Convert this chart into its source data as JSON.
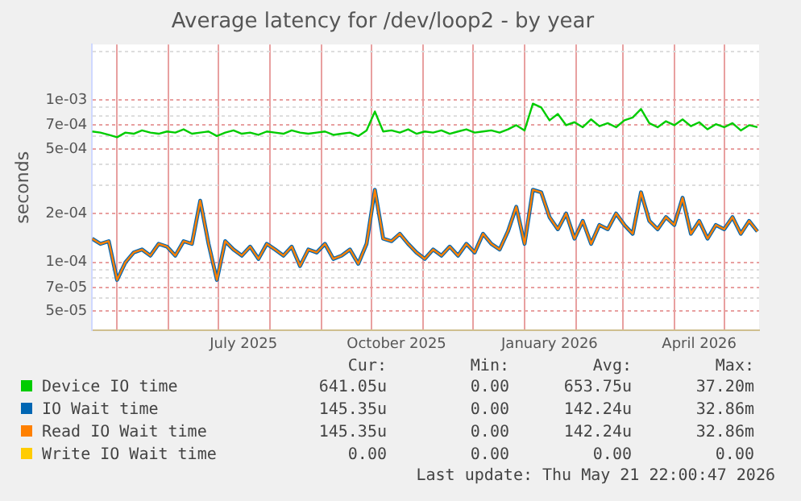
{
  "chart_data": {
    "type": "line",
    "title": "Average latency for /dev/loop2 - by year",
    "ylabel": "seconds",
    "x": [
      "2025-04-16",
      "2025-04-21",
      "2025-04-26",
      "2025-05-01",
      "2025-05-06",
      "2025-05-11",
      "2025-05-16",
      "2025-05-21",
      "2025-05-26",
      "2025-05-31",
      "2025-06-05",
      "2025-06-10",
      "2025-06-15",
      "2025-06-20",
      "2025-06-25",
      "2025-06-30",
      "2025-07-05",
      "2025-07-10",
      "2025-07-15",
      "2025-07-20",
      "2025-07-25",
      "2025-07-30",
      "2025-08-04",
      "2025-08-09",
      "2025-08-14",
      "2025-08-19",
      "2025-08-24",
      "2025-08-29",
      "2025-09-03",
      "2025-09-08",
      "2025-09-13",
      "2025-09-18",
      "2025-09-23",
      "2025-09-28",
      "2025-10-03",
      "2025-10-08",
      "2025-10-13",
      "2025-10-18",
      "2025-10-23",
      "2025-10-28",
      "2025-11-02",
      "2025-11-07",
      "2025-11-12",
      "2025-11-17",
      "2025-11-22",
      "2025-11-27",
      "2025-12-02",
      "2025-12-07",
      "2025-12-12",
      "2025-12-17",
      "2025-12-22",
      "2025-12-27",
      "2026-01-01",
      "2026-01-06",
      "2026-01-11",
      "2026-01-16",
      "2026-01-21",
      "2026-01-26",
      "2026-01-31",
      "2026-02-05",
      "2026-02-10",
      "2026-02-15",
      "2026-02-20",
      "2026-02-25",
      "2026-03-02",
      "2026-03-07",
      "2026-03-12",
      "2026-03-17",
      "2026-03-22",
      "2026-03-27",
      "2026-04-01",
      "2026-04-06",
      "2026-04-11",
      "2026-04-16",
      "2026-04-21",
      "2026-04-26",
      "2026-05-01",
      "2026-05-06",
      "2026-05-11",
      "2026-05-16",
      "2026-05-21"
    ],
    "series": [
      {
        "name": "Device IO time",
        "color": "#00cc00",
        "values": [
          0.00064,
          0.00063,
          0.00061,
          0.00059,
          0.00063,
          0.00062,
          0.00065,
          0.00063,
          0.00062,
          0.00064,
          0.00063,
          0.00066,
          0.00062,
          0.00063,
          0.00064,
          0.0006,
          0.00063,
          0.00065,
          0.00062,
          0.00063,
          0.00061,
          0.00064,
          0.00063,
          0.00062,
          0.00065,
          0.00063,
          0.00062,
          0.00063,
          0.00064,
          0.00061,
          0.00062,
          0.00063,
          0.0006,
          0.00065,
          0.00085,
          0.00064,
          0.00065,
          0.00063,
          0.00066,
          0.00062,
          0.00064,
          0.00063,
          0.00065,
          0.00062,
          0.00064,
          0.00066,
          0.00063,
          0.00064,
          0.00065,
          0.00063,
          0.00066,
          0.0007,
          0.00065,
          0.00095,
          0.0009,
          0.00075,
          0.00082,
          0.0007,
          0.00073,
          0.00068,
          0.00076,
          0.00069,
          0.00072,
          0.00068,
          0.00075,
          0.00078,
          0.00088,
          0.00072,
          0.00068,
          0.00074,
          0.0007,
          0.00076,
          0.00069,
          0.00073,
          0.00066,
          0.00071,
          0.00068,
          0.00072,
          0.00065,
          0.0007,
          0.00068
        ]
      },
      {
        "name": "IO Wait time",
        "color": "#0066b3",
        "values": [
          0.00014,
          0.00013,
          0.000135,
          7.8e-05,
          0.0001,
          0.000115,
          0.00012,
          0.00011,
          0.00013,
          0.000125,
          0.00011,
          0.000135,
          0.00013,
          0.00024,
          0.00013,
          7.8e-05,
          0.000135,
          0.00012,
          0.00011,
          0.000125,
          0.000105,
          0.00013,
          0.00012,
          0.00011,
          0.000125,
          9.5e-05,
          0.00012,
          0.000115,
          0.00013,
          0.000105,
          0.00011,
          0.00012,
          9.8e-05,
          0.00013,
          0.00028,
          0.00014,
          0.000135,
          0.00015,
          0.00013,
          0.000115,
          0.000105,
          0.00012,
          0.00011,
          0.000125,
          0.00011,
          0.00013,
          0.000115,
          0.00015,
          0.00013,
          0.00012,
          0.000155,
          0.00022,
          0.00013,
          0.00028,
          0.00027,
          0.00019,
          0.00016,
          0.0002,
          0.00014,
          0.00018,
          0.00013,
          0.00017,
          0.00016,
          0.0002,
          0.00017,
          0.00015,
          0.00027,
          0.00018,
          0.00016,
          0.00019,
          0.00017,
          0.00025,
          0.00015,
          0.00018,
          0.00014,
          0.00017,
          0.00016,
          0.00019,
          0.00015,
          0.00018,
          0.000155
        ]
      },
      {
        "name": "Read IO Wait time",
        "color": "#ff8000",
        "values": [
          0.00014,
          0.00013,
          0.000135,
          7.8e-05,
          0.0001,
          0.000115,
          0.00012,
          0.00011,
          0.00013,
          0.000125,
          0.00011,
          0.000135,
          0.00013,
          0.00024,
          0.00013,
          7.8e-05,
          0.000135,
          0.00012,
          0.00011,
          0.000125,
          0.000105,
          0.00013,
          0.00012,
          0.00011,
          0.000125,
          9.5e-05,
          0.00012,
          0.000115,
          0.00013,
          0.000105,
          0.00011,
          0.00012,
          9.8e-05,
          0.00013,
          0.00028,
          0.00014,
          0.000135,
          0.00015,
          0.00013,
          0.000115,
          0.000105,
          0.00012,
          0.00011,
          0.000125,
          0.00011,
          0.00013,
          0.000115,
          0.00015,
          0.00013,
          0.00012,
          0.000155,
          0.00022,
          0.00013,
          0.00028,
          0.00027,
          0.00019,
          0.00016,
          0.0002,
          0.00014,
          0.00018,
          0.00013,
          0.00017,
          0.00016,
          0.0002,
          0.00017,
          0.00015,
          0.00027,
          0.00018,
          0.00016,
          0.00019,
          0.00017,
          0.00025,
          0.00015,
          0.00018,
          0.00014,
          0.00017,
          0.00016,
          0.00019,
          0.00015,
          0.00018,
          0.000155
        ]
      },
      {
        "name": "Write IO Wait time",
        "color": "#ffcc00",
        "values": [
          null,
          null,
          null,
          null,
          null,
          null,
          null,
          null,
          null,
          null,
          null,
          null,
          null,
          null,
          null,
          null,
          null,
          null,
          null,
          null,
          null,
          null,
          null,
          null,
          null,
          null,
          null,
          null,
          null,
          null,
          null,
          null,
          null,
          null,
          null,
          null,
          null,
          null,
          null,
          null,
          null,
          null,
          null,
          null,
          null,
          null,
          null,
          null,
          null,
          null,
          null,
          null,
          null,
          null,
          null,
          null,
          null,
          null,
          null,
          null,
          null,
          null,
          null,
          null,
          null,
          null,
          null,
          null,
          null,
          null,
          null,
          null,
          null,
          null,
          null,
          null,
          null,
          null,
          null,
          null,
          null
        ]
      }
    ],
    "log": "y",
    "ylim": [
      3.8e-05,
      0.0022
    ],
    "yticks": [
      {
        "value": 5e-05,
        "label": "5e-05"
      },
      {
        "value": 6e-05,
        "label": null
      },
      {
        "value": 7e-05,
        "label": "7e-05"
      },
      {
        "value": 8e-05,
        "label": null
      },
      {
        "value": 9e-05,
        "label": null
      },
      {
        "value": 0.0001,
        "label": "1e-04"
      },
      {
        "value": 0.0002,
        "label": "2e-04"
      },
      {
        "value": 0.0003,
        "label": null
      },
      {
        "value": 0.0004,
        "label": null
      },
      {
        "value": 0.0005,
        "label": "5e-04"
      },
      {
        "value": 0.0006,
        "label": null
      },
      {
        "value": 0.0007,
        "label": "7e-04"
      },
      {
        "value": 0.0008,
        "label": null
      },
      {
        "value": 0.0009,
        "label": null
      },
      {
        "value": 0.001,
        "label": "1e-03"
      },
      {
        "value": 0.002,
        "label": null
      }
    ],
    "xlim": [
      "2025-04-16",
      "2026-05-22"
    ],
    "xticks": [
      {
        "value": "2025-05-01",
        "label": null
      },
      {
        "value": "2025-06-01",
        "label": null
      },
      {
        "value": "2025-07-01",
        "label": null
      },
      {
        "value": "2025-07-16",
        "label": "July 2025"
      },
      {
        "value": "2025-08-01",
        "label": null
      },
      {
        "value": "2025-09-01",
        "label": null
      },
      {
        "value": "2025-10-01",
        "label": null
      },
      {
        "value": "2025-10-16",
        "label": "October 2025"
      },
      {
        "value": "2025-11-01",
        "label": null
      },
      {
        "value": "2025-12-01",
        "label": null
      },
      {
        "value": "2026-01-01",
        "label": null
      },
      {
        "value": "2026-01-16",
        "label": "January 2026"
      },
      {
        "value": "2026-02-01",
        "label": null
      },
      {
        "value": "2026-03-01",
        "label": null
      },
      {
        "value": "2026-04-01",
        "label": null
      },
      {
        "value": "2026-04-16",
        "label": "April 2026"
      },
      {
        "value": "2026-05-01",
        "label": null
      }
    ],
    "grid": true,
    "legend": "bottom",
    "marker": "none",
    "line_style": "solid",
    "annotations": [
      "Cur:",
      "Min:",
      "Avg:",
      "Max:",
      "641.05u",
      "0.00",
      "653.75u",
      "37.20m",
      "145.35u",
      "0.00",
      "142.24u",
      "32.86m",
      "145.35u",
      "0.00",
      "142.24u",
      "32.86m",
      "0.00",
      "0.00",
      "0.00",
      "0.00",
      "Last update: Thu May 21 22:00:47 2026"
    ]
  }
}
